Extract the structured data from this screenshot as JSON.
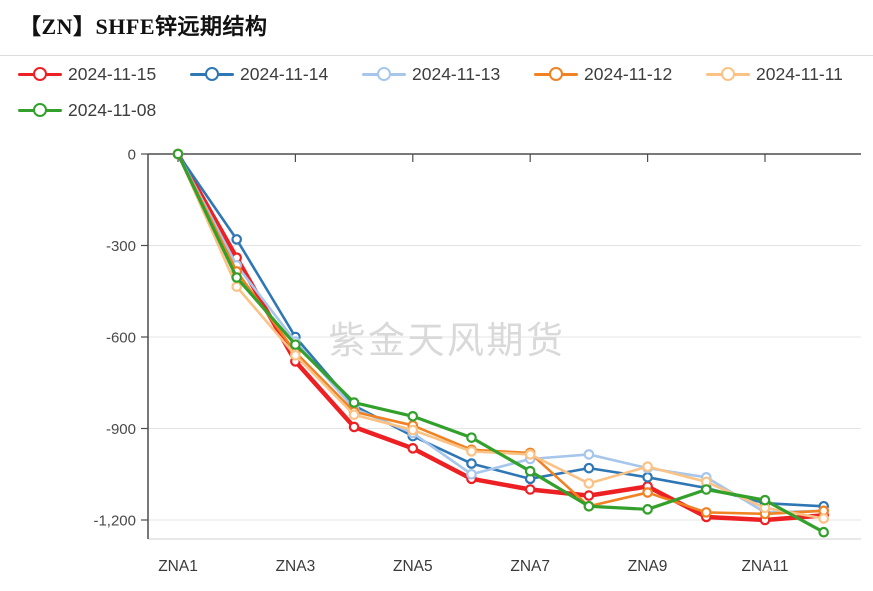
{
  "header": {
    "title": "【ZN】SHFE锌远期结构"
  },
  "watermark": "紫金天风期货",
  "chart_data": {
    "type": "line",
    "title": "【ZN】SHFE锌远期结构",
    "legend_position": "top",
    "grid": true,
    "categories": [
      "ZNA1",
      "ZNA2",
      "ZNA3",
      "ZNA4",
      "ZNA5",
      "ZNA6",
      "ZNA7",
      "ZNA8",
      "ZNA9",
      "ZNA10",
      "ZNA11",
      "ZNA12"
    ],
    "x_axis_tick_labels": [
      "ZNA1",
      "ZNA3",
      "ZNA5",
      "ZNA7",
      "ZNA9",
      "ZNA11"
    ],
    "y_axis": {
      "ticks": [
        0,
        -300,
        -600,
        -900,
        -1200
      ],
      "tick_labels": [
        "0",
        "-300",
        "-600",
        "-900",
        "-1,200"
      ],
      "range": [
        -1270,
        0
      ]
    },
    "series": [
      {
        "name": "2024-11-15",
        "color": "#ed2024",
        "line_width": 4.5,
        "values": [
          0,
          -340,
          -680,
          -895,
          -965,
          -1065,
          -1100,
          -1120,
          -1090,
          -1190,
          -1200,
          -1185
        ]
      },
      {
        "name": "2024-11-14",
        "color": "#2f77b4",
        "line_width": 2.6,
        "values": [
          0,
          -280,
          -600,
          -825,
          -925,
          -1015,
          -1065,
          -1030,
          -1060,
          -1095,
          -1145,
          -1155
        ]
      },
      {
        "name": "2024-11-13",
        "color": "#a7c6ec",
        "line_width": 2.6,
        "values": [
          0,
          -365,
          -615,
          -835,
          -915,
          -1050,
          -1000,
          -985,
          -1030,
          -1060,
          -1175,
          -1170
        ]
      },
      {
        "name": "2024-11-12",
        "color": "#f08223",
        "line_width": 2.6,
        "values": [
          0,
          -385,
          -650,
          -845,
          -890,
          -970,
          -980,
          -1155,
          -1110,
          -1175,
          -1180,
          -1170
        ]
      },
      {
        "name": "2024-11-11",
        "color": "#fbc286",
        "line_width": 2.6,
        "values": [
          0,
          -435,
          -660,
          -855,
          -905,
          -975,
          -985,
          -1080,
          -1025,
          -1075,
          -1160,
          -1195
        ]
      },
      {
        "name": "2024-11-08",
        "color": "#33a02c",
        "line_width": 3.2,
        "values": [
          0,
          -405,
          -625,
          -815,
          -860,
          -930,
          -1040,
          -1155,
          -1165,
          -1100,
          -1135,
          -1240
        ]
      }
    ],
    "colors": {
      "grid_line": "#e4e4e4",
      "axis_line": "#4d4d4d",
      "tick_label": "#4a4a4a",
      "watermark": "#d9d9d9"
    }
  }
}
